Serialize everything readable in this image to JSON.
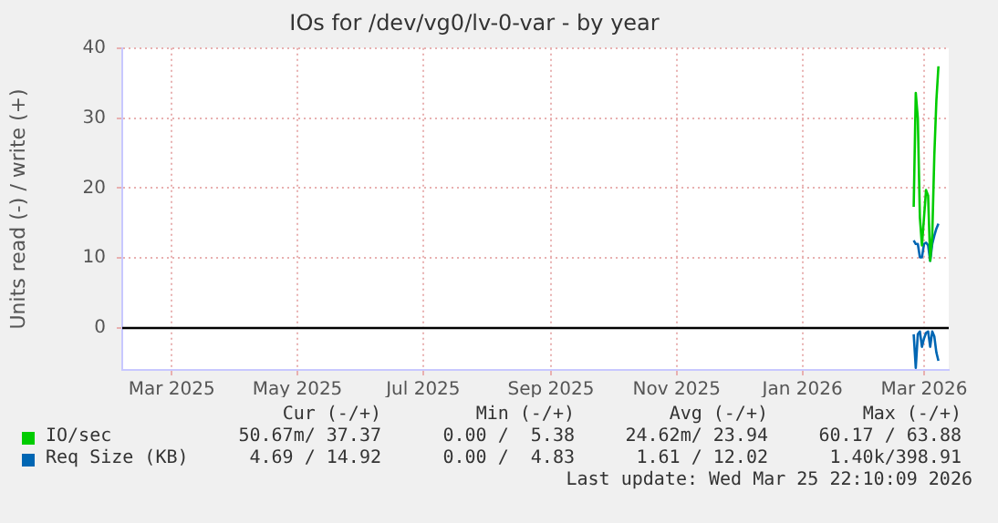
{
  "chart_data": {
    "type": "line",
    "title": "IOs for /dev/vg0/lv-0-var - by year",
    "ylabel": "Units read (-) / write (+)",
    "xlim": [
      "2025-02-20",
      "2026-03-28"
    ],
    "xticks": [
      {
        "value": "2025-03-16",
        "label": "Mar 2025"
      },
      {
        "value": "2025-05-16",
        "label": "May 2025"
      },
      {
        "value": "2025-07-16",
        "label": "Jul 2025"
      },
      {
        "value": "2025-09-16",
        "label": "Sep 2025"
      },
      {
        "value": "2025-11-16",
        "label": "Nov 2025"
      },
      {
        "value": "2026-01-16",
        "label": "Jan 2026"
      },
      {
        "value": "2026-03-16",
        "label": "Mar 2026"
      }
    ],
    "ylim": [
      -6,
      40
    ],
    "yticks": [
      0,
      10,
      20,
      30,
      40
    ],
    "grid": true,
    "legend": "bottom",
    "marker": "none",
    "line_style": "solid",
    "x": [
      "2026-03-11",
      "2026-03-12",
      "2026-03-13",
      "2026-03-14",
      "2026-03-15",
      "2026-03-16",
      "2026-03-17",
      "2026-03-18",
      "2026-03-19",
      "2026-03-20",
      "2026-03-21",
      "2026-03-22",
      "2026-03-23"
    ],
    "series": [
      {
        "name": "IO/sec",
        "color": "#00cc00",
        "values": [
          17.3,
          33.6,
          30,
          15.8,
          11.8,
          15.8,
          19.7,
          18.9,
          9.6,
          13.2,
          24.6,
          32.5,
          37.4
        ]
      },
      {
        "name": "Req Size (KB)",
        "color": "#0066b3",
        "values": [
          12.5,
          12,
          12,
          10.1,
          10.1,
          12,
          12.2,
          11.8,
          9.6,
          12,
          13.2,
          14.2,
          14.9
        ]
      },
      {
        "color": "#0066b3",
        "values": [
          -0.9,
          -5.7,
          -0.9,
          -0.5,
          -2.7,
          -1.5,
          -0.7,
          -0.5,
          -2.7,
          -0.5,
          -1.2,
          -3.5,
          -4.7
        ]
      }
    ],
    "ref_lines": [
      {
        "axis": "y",
        "value": 0,
        "color": "#000000"
      }
    ],
    "annotations": [
      "Cur (-/+)",
      "Min (-/+)",
      "Avg (-/+)",
      "Max (-/+)",
      "50.67m/ 37.37",
      "0.00 /  5.38",
      "24.62m/ 23.94",
      "60.17 / 63.88",
      "4.69 / 14.92",
      "0.00 /  4.83",
      "1.61 / 12.02",
      "1.40k/398.91",
      "Last update: Wed Mar 25 22:10:09 2026"
    ]
  }
}
